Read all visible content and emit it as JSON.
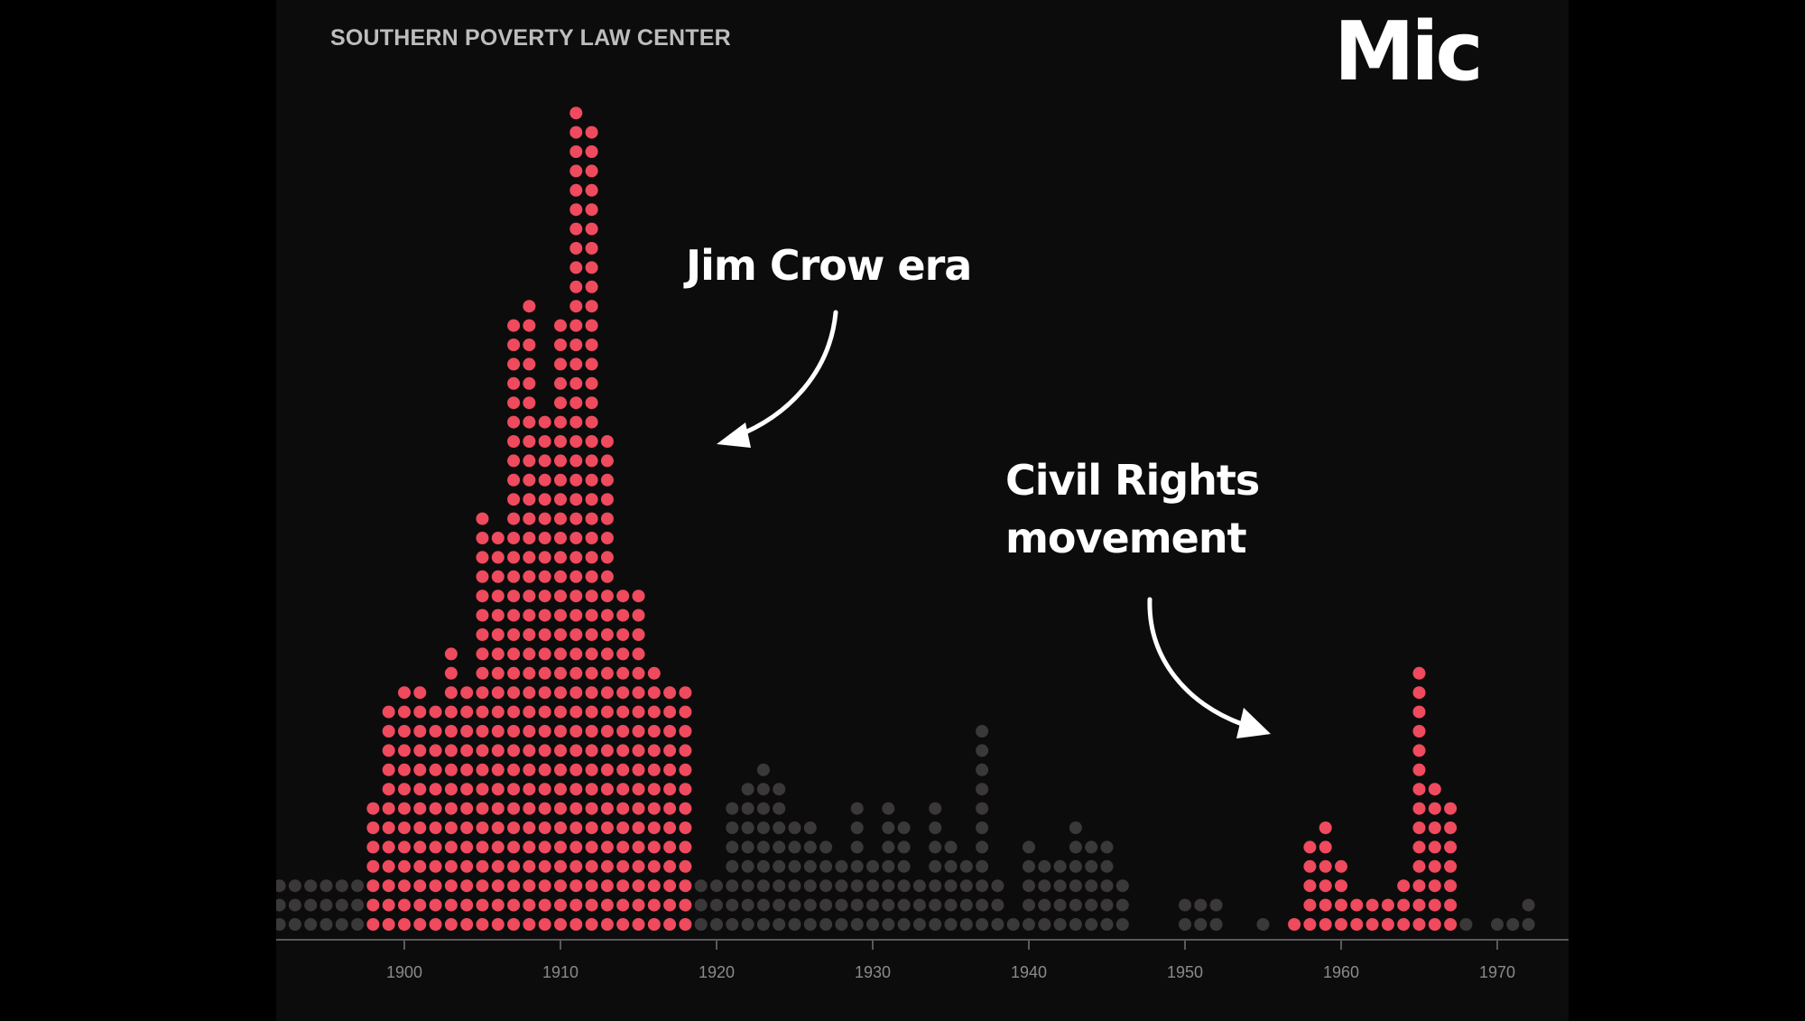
{
  "source_label": "SOUTHERN POVERTY LAW CENTER",
  "brand_logo": "Mic",
  "annotations": [
    {
      "id": "jim-crow",
      "text": "Jim Crow era"
    },
    {
      "id": "civil-rights",
      "line1": "Civil Rights",
      "line2": "movement"
    }
  ],
  "chart_data": {
    "type": "bar",
    "style": "dot-matrix",
    "x_ticks": [
      "1900",
      "1910",
      "1920",
      "1930",
      "1940",
      "1950",
      "1960",
      "1970"
    ],
    "highlight_color": "#ef4a5d",
    "base_color": "#3a3838",
    "x_start": 1892,
    "units": "dots per year",
    "years": [
      1892,
      1893,
      1894,
      1895,
      1896,
      1897,
      1898,
      1899,
      1900,
      1901,
      1902,
      1903,
      1904,
      1905,
      1906,
      1907,
      1908,
      1909,
      1910,
      1911,
      1912,
      1913,
      1914,
      1915,
      1916,
      1917,
      1918,
      1919,
      1920,
      1921,
      1922,
      1923,
      1924,
      1925,
      1926,
      1927,
      1928,
      1929,
      1930,
      1931,
      1932,
      1933,
      1934,
      1935,
      1936,
      1937,
      1938,
      1939,
      1940,
      1941,
      1942,
      1943,
      1944,
      1945,
      1946,
      1947,
      1948,
      1949,
      1950,
      1951,
      1952,
      1953,
      1954,
      1955,
      1956,
      1957,
      1958,
      1959,
      1960,
      1961,
      1962,
      1963,
      1964,
      1965,
      1966,
      1967,
      1968,
      1969,
      1970,
      1971,
      1972
    ],
    "values": [
      3,
      3,
      3,
      3,
      3,
      3,
      7,
      12,
      13,
      13,
      12,
      15,
      13,
      22,
      21,
      32,
      33,
      27,
      32,
      43,
      42,
      26,
      18,
      18,
      14,
      13,
      13,
      3,
      3,
      7,
      8,
      9,
      8,
      6,
      6,
      5,
      4,
      7,
      4,
      7,
      6,
      3,
      7,
      5,
      4,
      11,
      3,
      1,
      5,
      4,
      4,
      6,
      5,
      5,
      3,
      0,
      0,
      0,
      2,
      2,
      2,
      0,
      0,
      1,
      0,
      1,
      5,
      6,
      4,
      2,
      2,
      2,
      3,
      14,
      8,
      7,
      1,
      0,
      1,
      1,
      2
    ],
    "highlight_ranges": [
      [
        1898,
        1918
      ],
      [
        1956,
        1967
      ]
    ]
  }
}
